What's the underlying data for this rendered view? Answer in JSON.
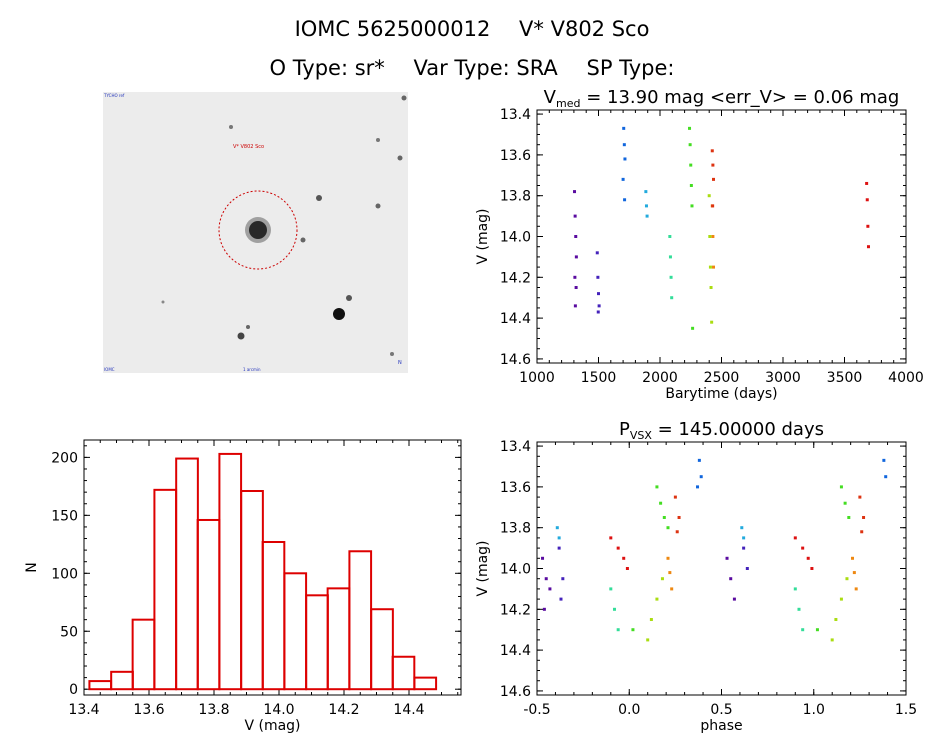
{
  "header": {
    "object_id": "IOMC 5625000012",
    "star_name": "V* V802 Sco",
    "otype_label": "O Type: sr*",
    "vartype_label": "Var Type: SRA",
    "sptype_label": "SP Type:"
  },
  "image": {
    "target_label": "V* V802 Sco",
    "corner_labels": [
      "TYCHO ref",
      "N",
      "IOMC",
      "1 arcmin"
    ],
    "colors": {
      "background": "#ececec",
      "circle": "#cc0000",
      "label": "#cc0000",
      "corner": "#2233bb"
    }
  },
  "chart_data": [
    {
      "id": "lightcurve",
      "type": "scatter",
      "title_main": "V",
      "title_sub": "med",
      "title_rest": " = 13.90 mag <err_V> = 0.06 mag",
      "xlabel": "Barytime (days)",
      "ylabel": "V (mag)",
      "xlim": [
        1000,
        4000
      ],
      "ylim": [
        14.62,
        13.38
      ],
      "xticks": [
        1000,
        1500,
        2000,
        2500,
        3000,
        3500,
        4000
      ],
      "yticks": [
        13.4,
        13.6,
        13.8,
        14.0,
        14.2,
        14.4,
        14.6
      ],
      "series": [
        {
          "name": "s1",
          "color": "#5a0ba0",
          "x": [
            1305,
            1310,
            1315,
            1320,
            1308,
            1318,
            1312
          ],
          "y": [
            13.78,
            13.9,
            14.0,
            14.1,
            14.2,
            14.25,
            14.34
          ]
        },
        {
          "name": "s2",
          "color": "#4422bb",
          "x": [
            1490,
            1495,
            1500,
            1505,
            1498
          ],
          "y": [
            14.08,
            14.2,
            14.28,
            14.34,
            14.37
          ]
        },
        {
          "name": "s3",
          "color": "#1166dd",
          "x": [
            1705,
            1710,
            1715,
            1700,
            1712
          ],
          "y": [
            13.47,
            13.55,
            13.62,
            13.72,
            13.82
          ]
        },
        {
          "name": "s4",
          "color": "#22aadd",
          "x": [
            1885,
            1890,
            1895
          ],
          "y": [
            13.78,
            13.85,
            13.9
          ]
        },
        {
          "name": "s5",
          "color": "#33dd99",
          "x": [
            2080,
            2085,
            2090,
            2095
          ],
          "y": [
            14.0,
            14.1,
            14.2,
            14.3
          ]
        },
        {
          "name": "s6",
          "color": "#44dd22",
          "x": [
            2240,
            2245,
            2250,
            2255,
            2260,
            2265
          ],
          "y": [
            13.47,
            13.55,
            13.65,
            13.75,
            13.85,
            14.45
          ]
        },
        {
          "name": "s7",
          "color": "#aadd11",
          "x": [
            2400,
            2405,
            2410,
            2415,
            2420
          ],
          "y": [
            13.8,
            14.0,
            14.15,
            14.25,
            14.42
          ]
        },
        {
          "name": "s8",
          "color": "#ee8811",
          "x": [
            2425,
            2430,
            2435
          ],
          "y": [
            13.85,
            14.0,
            14.15
          ]
        },
        {
          "name": "s9",
          "color": "#dd3311",
          "x": [
            2425,
            2430,
            2435,
            2428
          ],
          "y": [
            13.58,
            13.65,
            13.72,
            13.85
          ]
        },
        {
          "name": "s10",
          "color": "#dd1111",
          "x": [
            3680,
            3685,
            3690,
            3695
          ],
          "y": [
            13.74,
            13.82,
            13.95,
            14.05
          ]
        }
      ]
    },
    {
      "id": "histogram",
      "type": "bar",
      "xlabel": "V (mag)",
      "ylabel": "N",
      "xlim": [
        13.4,
        14.56
      ],
      "ylim": [
        -5,
        215
      ],
      "xticks": [
        13.4,
        13.6,
        13.8,
        14.0,
        14.2,
        14.4
      ],
      "yticks": [
        0,
        50,
        100,
        150,
        200
      ],
      "bin_width": 0.0667,
      "bins": [
        13.45,
        13.517,
        13.583,
        13.65,
        13.717,
        13.783,
        13.85,
        13.917,
        13.983,
        14.05,
        14.117,
        14.183,
        14.25,
        14.317,
        14.383,
        14.45
      ],
      "values": [
        7,
        15,
        60,
        172,
        199,
        146,
        203,
        171,
        127,
        100,
        81,
        87,
        119,
        69,
        28,
        10
      ],
      "color": "#dd0000"
    },
    {
      "id": "phased",
      "type": "scatter",
      "title_main": "P",
      "title_sub": "VSX",
      "title_rest": " = 145.00000 days",
      "xlabel": "phase",
      "ylabel": "V (mag)",
      "xlim": [
        -0.5,
        1.5
      ],
      "ylim": [
        14.62,
        13.38
      ],
      "xticks": [
        -0.5,
        0.0,
        0.5,
        1.0,
        1.5
      ],
      "yticks": [
        13.4,
        13.6,
        13.8,
        14.0,
        14.2,
        14.4,
        14.6
      ],
      "series": [
        {
          "name": "s1",
          "color": "#5a0ba0",
          "x": [
            -0.47,
            -0.45,
            -0.43,
            -0.46,
            0.53,
            0.55,
            0.57
          ],
          "y": [
            13.95,
            14.05,
            14.1,
            14.2,
            13.95,
            14.05,
            14.15
          ]
        },
        {
          "name": "s2",
          "color": "#4422bb",
          "x": [
            -0.38,
            -0.36,
            -0.37,
            0.62,
            0.64
          ],
          "y": [
            13.9,
            14.05,
            14.15,
            13.9,
            14.0
          ]
        },
        {
          "name": "s3",
          "color": "#1166dd",
          "x": [
            0.38,
            0.39,
            0.37,
            1.38,
            1.39
          ],
          "y": [
            13.47,
            13.55,
            13.6,
            13.47,
            13.55
          ]
        },
        {
          "name": "s4",
          "color": "#22aadd",
          "x": [
            -0.39,
            -0.38,
            0.61,
            0.62
          ],
          "y": [
            13.8,
            13.85,
            13.8,
            13.85
          ]
        },
        {
          "name": "s5",
          "color": "#33dd99",
          "x": [
            -0.1,
            -0.08,
            -0.06,
            0.9,
            0.92,
            0.94
          ],
          "y": [
            14.1,
            14.2,
            14.3,
            14.1,
            14.2,
            14.3
          ]
        },
        {
          "name": "s6",
          "color": "#44dd22",
          "x": [
            0.15,
            0.17,
            0.19,
            0.21,
            0.02,
            1.15,
            1.17,
            1.19,
            1.02
          ],
          "y": [
            13.6,
            13.68,
            13.75,
            13.8,
            14.3,
            13.6,
            13.68,
            13.75,
            14.3
          ]
        },
        {
          "name": "s7",
          "color": "#aadd11",
          "x": [
            0.1,
            0.12,
            0.15,
            0.18,
            1.1,
            1.12,
            1.15,
            1.18
          ],
          "y": [
            14.35,
            14.25,
            14.15,
            14.05,
            14.35,
            14.25,
            14.15,
            14.05
          ]
        },
        {
          "name": "s8",
          "color": "#ee8811",
          "x": [
            0.21,
            0.22,
            0.23,
            1.21,
            1.22,
            1.23
          ],
          "y": [
            13.95,
            14.02,
            14.1,
            13.95,
            14.02,
            14.1
          ]
        },
        {
          "name": "s9",
          "color": "#dd3311",
          "x": [
            0.25,
            0.27,
            0.26,
            1.25,
            1.27,
            1.26
          ],
          "y": [
            13.65,
            13.75,
            13.82,
            13.65,
            13.75,
            13.82
          ]
        },
        {
          "name": "s10",
          "color": "#dd1111",
          "x": [
            -0.1,
            -0.06,
            -0.03,
            -0.01,
            0.9,
            0.94,
            0.97,
            0.99
          ],
          "y": [
            13.85,
            13.9,
            13.95,
            14.0,
            13.85,
            13.9,
            13.95,
            14.0
          ]
        }
      ]
    }
  ]
}
